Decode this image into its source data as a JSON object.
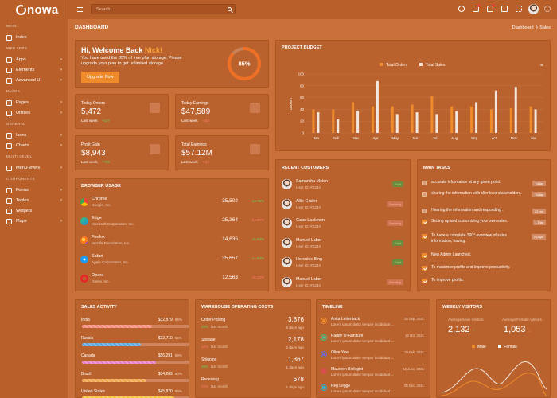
{
  "brand": {
    "name": "nowa"
  },
  "colors": {
    "accent": "#ef8b2b",
    "sidebar": "#b85f2a",
    "page": "#c96f38",
    "panel": "#b9622d",
    "success": "#6cce5b",
    "danger": "#ff7b70"
  },
  "sidebar": {
    "sections": [
      {
        "title": "MAIN",
        "items": [
          {
            "label": "Index",
            "icon": "home-icon",
            "chevron": false
          }
        ]
      },
      {
        "title": "WEB APPS",
        "items": [
          {
            "label": "Apps",
            "icon": "grid-icon",
            "chevron": true
          },
          {
            "label": "Elements",
            "icon": "box-icon",
            "chevron": true
          },
          {
            "label": "Advanced UI",
            "icon": "layers-icon",
            "chevron": true
          }
        ]
      },
      {
        "title": "PAGES",
        "items": [
          {
            "label": "Pages",
            "icon": "file-icon",
            "chevron": true
          },
          {
            "label": "Utilities",
            "icon": "tools-icon",
            "chevron": true
          }
        ]
      },
      {
        "title": "GENERAL",
        "items": [
          {
            "label": "Icons",
            "icon": "icons-icon",
            "chevron": true
          },
          {
            "label": "Charts",
            "icon": "chart-icon",
            "chevron": true
          }
        ]
      },
      {
        "title": "MULTI LEVEL",
        "items": [
          {
            "label": "Menu-levels",
            "icon": "menu-icon",
            "chevron": true
          }
        ]
      },
      {
        "title": "COMPONENTS",
        "items": [
          {
            "label": "Forms",
            "icon": "form-icon",
            "chevron": true
          },
          {
            "label": "Tables",
            "icon": "table-icon",
            "chevron": true
          },
          {
            "label": "Widgets",
            "icon": "widget-icon",
            "chevron": false
          },
          {
            "label": "Maps",
            "icon": "map-icon",
            "chevron": true
          }
        ]
      }
    ]
  },
  "topbar": {
    "search_placeholder": "Search..."
  },
  "dashboard": {
    "title": "DASHBOARD",
    "breadcrumb_root": "Dashboard",
    "breadcrumb_current": "Sales"
  },
  "welcome": {
    "title_prefix": "Hi, Welcome Back ",
    "name": "Nick!",
    "text": "You have used the 85% of free plan storage. Please upgrade your plan to get unlimited storage.",
    "button": "Upgrade Now",
    "percent": 85,
    "percent_label": "85%"
  },
  "stats": [
    {
      "label": "Today Orders",
      "value": "5,472",
      "sub": "Last week",
      "trend": "+427",
      "dir": "up",
      "icon": "cart-icon"
    },
    {
      "label": "Today Earnings",
      "value": "$47,589",
      "sub": "Last week",
      "trend": "-453",
      "dir": "down",
      "icon": "dollar-icon"
    },
    {
      "label": "Profit Gain",
      "value": "$8,943",
      "sub": "Last week",
      "trend": "+788",
      "dir": "up",
      "icon": "gift-icon"
    },
    {
      "label": "Total Earnings",
      "value": "$57.12M",
      "sub": "Last week",
      "trend": "-693",
      "dir": "down",
      "icon": "wallet-icon"
    }
  ],
  "budget": {
    "title": "PROJECT BUDGET",
    "menu": "≡",
    "chart_data": {
      "type": "bar",
      "categories": [
        "Jan",
        "Feb",
        "Mar",
        "Apr",
        "May",
        "Jun",
        "Jul",
        "Aug",
        "Sep",
        "oct",
        "Nov",
        "dec"
      ],
      "ylabel": "Growth",
      "ylim": [
        0,
        100
      ],
      "yticks": [
        0,
        20,
        40,
        60,
        80,
        100
      ],
      "series": [
        {
          "name": "Total Orders",
          "color": "#ef8b2b",
          "values": [
            40,
            40,
            52,
            45,
            45,
            48,
            63,
            45,
            45,
            40,
            42,
            45
          ]
        },
        {
          "name": "Total Sales",
          "color": "#f3e6dd",
          "values": [
            35,
            23,
            38,
            88,
            32,
            35,
            32,
            37,
            52,
            72,
            78,
            40
          ]
        }
      ]
    }
  },
  "browser": {
    "title": "BROWSER USAGE",
    "items": [
      {
        "name": "Chrome",
        "company": "Google, Inc.",
        "value": "35,502",
        "trend": "12.75%",
        "dir": "up",
        "icon": "chrome-icon"
      },
      {
        "name": "Edge",
        "company": "Microsoft Corporation, Inc.",
        "value": "25,364",
        "trend": "24.37%",
        "dir": "down",
        "icon": "edge-icon"
      },
      {
        "name": "Firefox",
        "company": "Mozilla Foundation, Inc.",
        "value": "14,635",
        "trend": "15.63%",
        "dir": "up",
        "icon": "firefox-icon"
      },
      {
        "name": "Safari",
        "company": "Apple Corporation, Inc.",
        "value": "35,657",
        "trend": "12.54%",
        "dir": "up",
        "icon": "safari-icon"
      },
      {
        "name": "Opera",
        "company": "Opera, Inc.",
        "value": "12,563",
        "trend": "15.12%",
        "dir": "down",
        "icon": "opera-icon"
      }
    ]
  },
  "customers": {
    "title": "RECENT CUSTOMERS",
    "items": [
      {
        "name": "Samantha Melon",
        "id": "User ID: #1234",
        "status": "Paid"
      },
      {
        "name": "Allie Grater",
        "id": "User ID: #1234",
        "status": "Pending"
      },
      {
        "name": "Gabe Lackmen",
        "id": "User ID: #1234",
        "status": "Pending"
      },
      {
        "name": "Manuel Labor",
        "id": "User ID: #1234",
        "status": "Paid"
      },
      {
        "name": "Hercules Bing",
        "id": "User ID: #1234",
        "status": "Paid"
      },
      {
        "name": "Manuel Labor",
        "id": "User ID: #1234",
        "status": "Pending"
      }
    ]
  },
  "tasks": {
    "title": "MAIN TASKS",
    "items": [
      {
        "text": "accurate information at any given point.",
        "checked": false,
        "tag": "Today"
      },
      {
        "text": "sharing the information with clients or stakeholders.",
        "checked": false,
        "tag": "Today"
      },
      {
        "text": "Hearing the information and responding .",
        "checked": false,
        "tag": "22 hrs"
      },
      {
        "text": "Setting up and customizing your own sales.",
        "checked": true,
        "tag": "1 Day"
      },
      {
        "text": "To have a complete 360° overview of sales information, having.",
        "checked": true,
        "tag": "2 Days"
      },
      {
        "text": "New Admin Launched.",
        "checked": true,
        "tag": ""
      },
      {
        "text": "To maximize profits and improve productivity.",
        "checked": true,
        "tag": ""
      },
      {
        "text": "To improve profits.",
        "checked": true,
        "tag": ""
      }
    ]
  },
  "sales_activity": {
    "title": "SALES ACTIVITY",
    "items": [
      {
        "country": "India",
        "amount": "$32,879",
        "pct": "65%",
        "fill": 0.65,
        "color": "#f38a7b"
      },
      {
        "country": "Russia",
        "amount": "$22,710",
        "pct": "55%",
        "fill": 0.55,
        "color": "#5aa6d9"
      },
      {
        "country": "Canada",
        "amount": "$56,291",
        "pct": "69%",
        "fill": 0.69,
        "color": "#e77ec3"
      },
      {
        "country": "Brazil",
        "amount": "$34,209",
        "pct": "60%",
        "fill": 0.6,
        "color": "#f0a54a"
      },
      {
        "country": "United States",
        "amount": "$45,870",
        "pct": "86%",
        "fill": 0.86,
        "color": "#f5c52f"
      }
    ]
  },
  "warehouse": {
    "title": "WAREHOUSE OPERATING COSTS",
    "items": [
      {
        "name": "Order Picking",
        "value": "3,876",
        "trend": "03%",
        "sub": "last month",
        "days": "5 days ago",
        "dir": "up"
      },
      {
        "name": "Storage",
        "value": "2,178",
        "trend": "16%",
        "sub": "last month",
        "days": "2 days ago",
        "dir": "down"
      },
      {
        "name": "Shipping",
        "value": "1,367",
        "trend": "06%",
        "sub": "last month",
        "days": "1 days ago",
        "dir": "up"
      },
      {
        "name": "Receiving",
        "value": "678",
        "trend": "25%",
        "sub": "last month",
        "days": "1 days ago",
        "dir": "down"
      }
    ]
  },
  "timeline": {
    "title": "TIMELINE",
    "items": [
      {
        "name": "Anita Letterback",
        "text": "Lorem ipsum dolor tempor incididunt ...",
        "date": "25 Sep, 2021",
        "color": "#ef8b2b"
      },
      {
        "name": "Paddy O'Furniture",
        "text": "Lorem ipsum dolor tempor incididunt ...",
        "date": "16 Oct, 2021",
        "color": "#4fbf8a"
      },
      {
        "name": "Olive Yew",
        "text": "Lorem ipsum dolor tempor incididunt ...",
        "date": "28 Feb, 2021",
        "color": "#6a6bd8"
      },
      {
        "name": "Maureen Biologist",
        "text": "Lorem ipsum dolor tempor incididunt ...",
        "date": "15 June, 2021",
        "color": "#e04b55"
      },
      {
        "name": "Peg Legge",
        "text": "Lorem ipsum dolor tempor incididunt ...",
        "date": "05 Dec, 2021",
        "color": "#2fb7d6"
      }
    ]
  },
  "visitors": {
    "title": "WEEKLY VISITORS",
    "male_label": "Average Male Visitors",
    "male_value": "2,132",
    "male_trend": "↑",
    "female_label": "Average Female Visitors",
    "female_value": "1,053",
    "female_trend": "↓",
    "legend": [
      "Male",
      "Female"
    ]
  }
}
